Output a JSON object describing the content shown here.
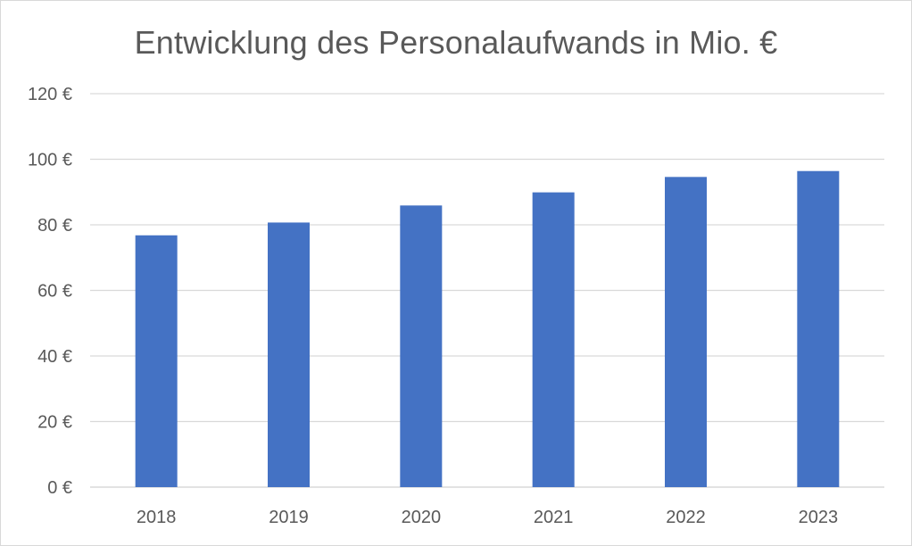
{
  "chart_data": {
    "type": "bar",
    "title": "Entwicklung des Personalaufwands in Mio. €",
    "categories": [
      "2018",
      "2019",
      "2020",
      "2021",
      "2022",
      "2023"
    ],
    "values": [
      76.8,
      80.7,
      85.9,
      89.9,
      94.6,
      96.4
    ],
    "ylim": [
      0,
      120
    ],
    "y_ticks": [
      0,
      20,
      40,
      60,
      80,
      100,
      120
    ],
    "y_tick_labels": [
      "0 €",
      "20 €",
      "40 €",
      "60 €",
      "80 €",
      "100 €",
      "120 €"
    ],
    "xlabel": "",
    "ylabel": "",
    "grid": true,
    "legend": "none",
    "bar_color": "#4472C4",
    "grid_color": "#d9d9d9"
  }
}
